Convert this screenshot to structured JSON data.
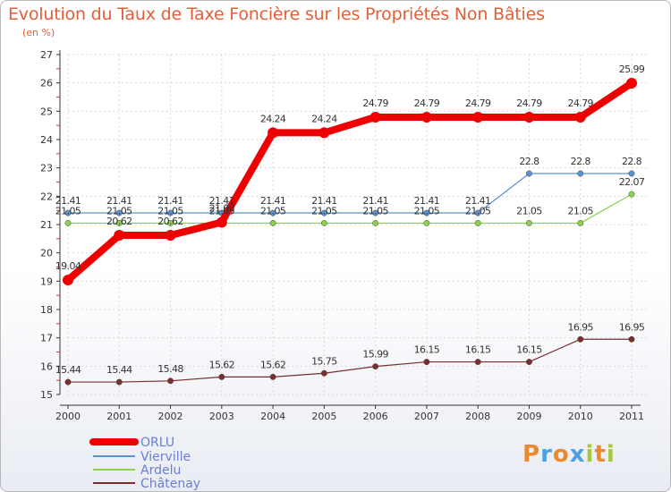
{
  "chart_data": {
    "type": "line",
    "title": "Evolution du Taux de Taxe Foncière sur les Propriétés Non Bâties",
    "subtitle": "(en %)",
    "xlabel": "",
    "ylabel": "",
    "categories": [
      "2000",
      "2001",
      "2002",
      "2003",
      "2004",
      "2005",
      "2006",
      "2007",
      "2008",
      "2009",
      "2010",
      "2011"
    ],
    "ylim": [
      15,
      27
    ],
    "yticks": [
      15,
      16,
      17,
      18,
      19,
      20,
      21,
      22,
      23,
      24,
      25,
      26,
      27
    ],
    "legend_position": "bottom-left",
    "series": [
      {
        "name": "ORLU",
        "color": "#ee0000",
        "values": [
          19.04,
          20.62,
          20.62,
          21.08,
          24.24,
          24.24,
          24.79,
          24.79,
          24.79,
          24.79,
          24.79,
          25.99
        ],
        "labels": [
          "19.04",
          "20.62",
          "20.62",
          "21.08",
          "24.24",
          "24.24",
          "24.79",
          "24.79",
          "24.79",
          "24.79",
          "24.79",
          "25.99"
        ]
      },
      {
        "name": "Vierville",
        "color": "#5b92d0",
        "values": [
          21.41,
          21.41,
          21.41,
          21.41,
          21.41,
          21.41,
          21.41,
          21.41,
          21.41,
          22.8,
          22.8,
          22.8
        ],
        "labels": [
          "21.41",
          "21.41",
          "21.41",
          "21.41",
          "21.41",
          "21.41",
          "21.41",
          "21.41",
          "21.41",
          "22.8",
          "22.8",
          "22.8"
        ]
      },
      {
        "name": "Ardelu",
        "color": "#8fcf4f",
        "values": [
          21.05,
          21.05,
          21.05,
          21.05,
          21.05,
          21.05,
          21.05,
          21.05,
          21.05,
          21.05,
          21.05,
          22.07
        ],
        "labels": [
          "21.05",
          "21.05",
          "21.05",
          "21.05",
          "21.05",
          "21.05",
          "21.05",
          "21.05",
          "21.05",
          "21.05",
          "21.05",
          "22.07"
        ]
      },
      {
        "name": "Châtenay",
        "color": "#7a2e2e",
        "values": [
          15.44,
          15.44,
          15.48,
          15.62,
          15.62,
          15.75,
          15.99,
          16.15,
          16.15,
          16.15,
          16.95,
          16.95
        ],
        "labels": [
          "15.44",
          "15.44",
          "15.48",
          "15.62",
          "15.62",
          "15.75",
          "15.99",
          "16.15",
          "16.15",
          "16.15",
          "16.95",
          "16.95"
        ]
      }
    ]
  },
  "logo": {
    "text": "Proxiti",
    "letters": [
      "P",
      "r",
      "o",
      "x",
      "i",
      "t",
      "i"
    ],
    "colors": [
      "#e98b2d",
      "#4aa3df",
      "#e98b2d",
      "#4aa3df",
      "#a5c93b",
      "#e98b2d",
      "#a5c93b"
    ]
  }
}
